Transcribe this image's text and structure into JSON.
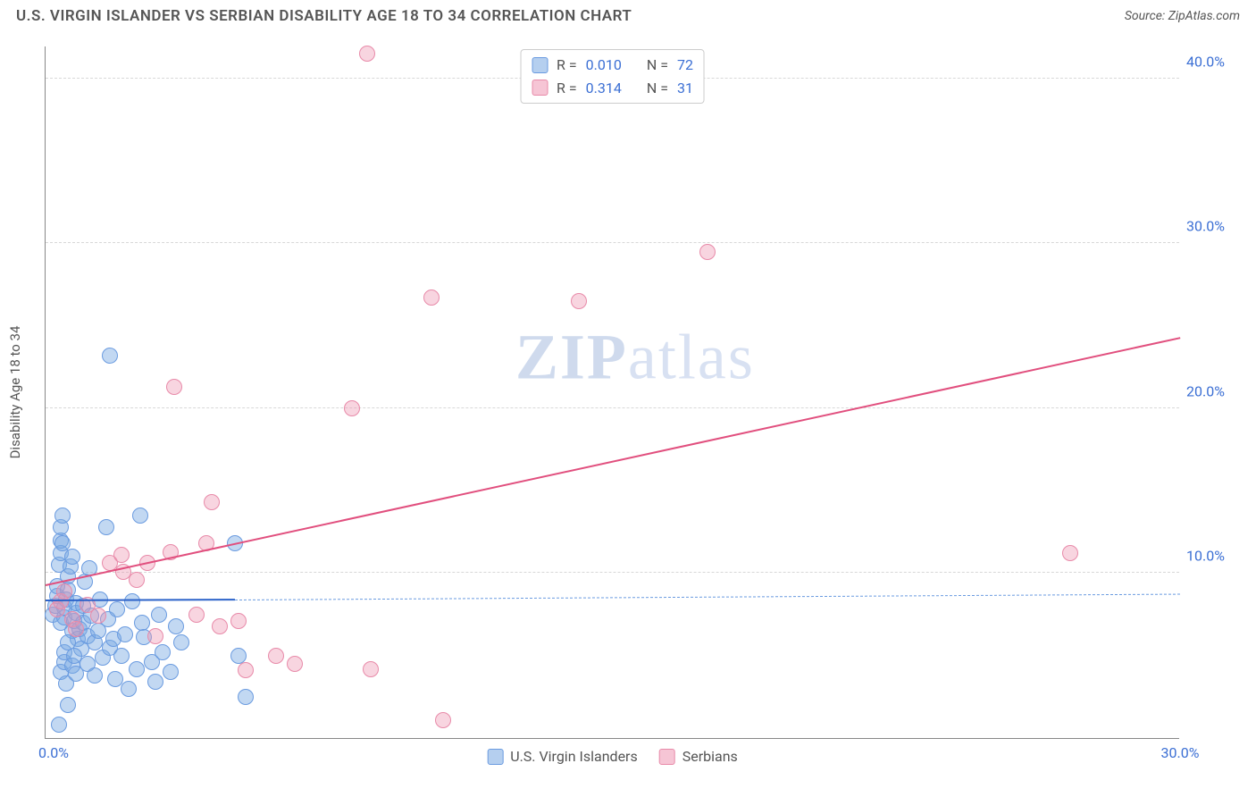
{
  "header": {
    "title": "U.S. VIRGIN ISLANDER VS SERBIAN DISABILITY AGE 18 TO 34 CORRELATION CHART",
    "source": "Source: ZipAtlas.com"
  },
  "chart": {
    "type": "scatter",
    "ylabel": "Disability Age 18 to 34",
    "xlim": [
      0,
      30
    ],
    "ylim": [
      0,
      42
    ],
    "xticks": [
      0.0,
      30.0
    ],
    "xtick_labels": [
      "0.0%",
      "30.0%"
    ],
    "yticks": [
      10.0,
      20.0,
      30.0,
      40.0
    ],
    "ytick_labels": [
      "10.0%",
      "20.0%",
      "30.0%",
      "40.0%"
    ],
    "background_color": "#ffffff",
    "grid_color": "#d8d8d8",
    "axis_color": "#888888",
    "tick_label_color": "#3b6fd4",
    "label_color": "#555555",
    "point_radius": 9,
    "series": [
      {
        "name": "U.S. Virgin Islanders",
        "fill": "rgba(120,168,226,0.45)",
        "stroke": "#6a9be0",
        "line_color": "#2b62c9",
        "dash_color": "#6a9be0",
        "R": "0.010",
        "N": "72",
        "regression": {
          "x1": 0,
          "y1": 8.3,
          "x2": 5.0,
          "y2": 8.35,
          "dash_x2": 30,
          "dash_y2": 8.7
        },
        "points": [
          [
            0.2,
            7.5
          ],
          [
            0.25,
            8.0
          ],
          [
            0.3,
            8.6
          ],
          [
            0.3,
            9.2
          ],
          [
            0.35,
            10.5
          ],
          [
            0.4,
            11.2
          ],
          [
            0.4,
            12.0
          ],
          [
            0.4,
            12.8
          ],
          [
            0.45,
            13.5
          ],
          [
            0.4,
            7.0
          ],
          [
            0.5,
            7.3
          ],
          [
            0.5,
            7.9
          ],
          [
            0.55,
            8.4
          ],
          [
            0.6,
            9.0
          ],
          [
            0.6,
            9.8
          ],
          [
            0.65,
            10.4
          ],
          [
            0.7,
            11.0
          ],
          [
            0.7,
            6.5
          ],
          [
            0.75,
            7.1
          ],
          [
            0.8,
            7.6
          ],
          [
            0.8,
            8.2
          ],
          [
            0.85,
            6.0
          ],
          [
            0.9,
            6.6
          ],
          [
            0.95,
            5.4
          ],
          [
            1.0,
            7.0
          ],
          [
            1.0,
            8.0
          ],
          [
            1.1,
            6.2
          ],
          [
            1.1,
            4.5
          ],
          [
            1.2,
            7.4
          ],
          [
            1.3,
            5.8
          ],
          [
            1.3,
            3.8
          ],
          [
            1.4,
            6.5
          ],
          [
            1.45,
            8.4
          ],
          [
            1.5,
            4.9
          ],
          [
            1.6,
            12.8
          ],
          [
            1.65,
            7.2
          ],
          [
            1.7,
            5.5
          ],
          [
            1.8,
            6.0
          ],
          [
            1.85,
            3.6
          ],
          [
            1.9,
            7.8
          ],
          [
            2.0,
            5.0
          ],
          [
            2.1,
            6.3
          ],
          [
            2.2,
            3.0
          ],
          [
            2.3,
            8.3
          ],
          [
            2.4,
            4.2
          ],
          [
            2.5,
            13.5
          ],
          [
            2.55,
            7.0
          ],
          [
            2.6,
            6.1
          ],
          [
            2.8,
            4.6
          ],
          [
            2.9,
            3.4
          ],
          [
            3.0,
            7.5
          ],
          [
            3.1,
            5.2
          ],
          [
            3.3,
            4.0
          ],
          [
            3.45,
            6.8
          ],
          [
            3.6,
            5.8
          ],
          [
            5.0,
            11.8
          ],
          [
            5.1,
            5.0
          ],
          [
            5.3,
            2.5
          ],
          [
            1.7,
            23.2
          ],
          [
            0.6,
            2.0
          ],
          [
            0.35,
            0.8
          ],
          [
            0.4,
            4.0
          ],
          [
            0.5,
            4.6
          ],
          [
            0.5,
            5.2
          ],
          [
            0.6,
            5.8
          ],
          [
            0.55,
            3.3
          ],
          [
            0.7,
            4.4
          ],
          [
            0.75,
            5.0
          ],
          [
            0.8,
            3.9
          ],
          [
            1.05,
            9.5
          ],
          [
            1.15,
            10.3
          ],
          [
            0.45,
            11.8
          ]
        ]
      },
      {
        "name": "Serbians",
        "fill": "rgba(238,150,178,0.40)",
        "stroke": "#e88aa9",
        "line_color": "#e14f7e",
        "dash_color": "#e88aa9",
        "R": "0.314",
        "N": "31",
        "regression": {
          "x1": 0,
          "y1": 9.2,
          "x2": 30,
          "y2": 24.2,
          "dash_x2": 30,
          "dash_y2": 24.2
        },
        "points": [
          [
            0.3,
            7.8
          ],
          [
            0.4,
            8.3
          ],
          [
            0.5,
            8.9
          ],
          [
            0.7,
            7.2
          ],
          [
            0.8,
            6.6
          ],
          [
            1.1,
            8.1
          ],
          [
            1.4,
            7.4
          ],
          [
            1.7,
            10.6
          ],
          [
            2.0,
            11.1
          ],
          [
            2.05,
            10.1
          ],
          [
            2.4,
            9.6
          ],
          [
            2.7,
            10.6
          ],
          [
            2.9,
            6.2
          ],
          [
            3.3,
            11.3
          ],
          [
            3.4,
            21.3
          ],
          [
            4.0,
            7.5
          ],
          [
            4.25,
            11.8
          ],
          [
            4.4,
            14.3
          ],
          [
            4.6,
            6.8
          ],
          [
            5.1,
            7.1
          ],
          [
            5.3,
            4.1
          ],
          [
            6.1,
            5.0
          ],
          [
            6.6,
            4.5
          ],
          [
            8.1,
            20.0
          ],
          [
            8.5,
            41.5
          ],
          [
            8.6,
            4.2
          ],
          [
            10.2,
            26.7
          ],
          [
            10.5,
            1.1
          ],
          [
            14.1,
            26.5
          ],
          [
            17.5,
            29.5
          ],
          [
            27.1,
            11.2
          ]
        ]
      }
    ],
    "legend_top": {
      "rows": [
        {
          "swatch_fill": "rgba(120,168,226,0.55)",
          "swatch_stroke": "#6a9be0",
          "R_label": "R =",
          "R": "0.010",
          "N_label": "N =",
          "N": "72"
        },
        {
          "swatch_fill": "rgba(238,150,178,0.55)",
          "swatch_stroke": "#e88aa9",
          "R_label": "R =",
          "R": "0.314",
          "N_label": "N =",
          "N": "31"
        }
      ]
    },
    "legend_bottom": [
      {
        "swatch_fill": "rgba(120,168,226,0.55)",
        "swatch_stroke": "#6a9be0",
        "label": "U.S. Virgin Islanders"
      },
      {
        "swatch_fill": "rgba(238,150,178,0.55)",
        "swatch_stroke": "#e88aa9",
        "label": "Serbians"
      }
    ],
    "watermark": {
      "part1": "ZIP",
      "part2": "atlas"
    }
  }
}
